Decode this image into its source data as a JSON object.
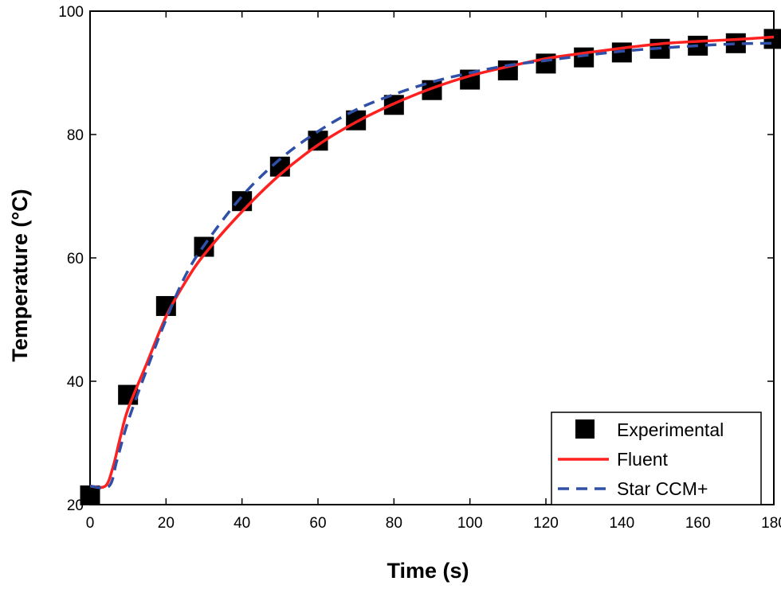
{
  "chart_data": {
    "type": "line",
    "title": "",
    "xlabel": "Time (s)",
    "ylabel": "Temperature (°C)",
    "xlim": [
      0,
      180
    ],
    "ylim": [
      20,
      100
    ],
    "x_ticks": [
      0,
      20,
      40,
      60,
      80,
      100,
      120,
      140,
      160,
      180
    ],
    "y_ticks": [
      20,
      40,
      60,
      80,
      100
    ],
    "grid": false,
    "legend_position": "bottom-right",
    "colors": {
      "experimental": "#000000",
      "fluent": "#ff2020",
      "star": "#3050a8"
    },
    "series": [
      {
        "name": "Experimental",
        "style": "square-markers",
        "x": [
          0,
          10,
          20,
          30,
          40,
          50,
          60,
          70,
          80,
          90,
          100,
          110,
          120,
          130,
          140,
          150,
          160,
          170,
          180
        ],
        "y": [
          21.5,
          37.8,
          52.2,
          61.8,
          69.2,
          74.8,
          79.0,
          82.3,
          84.8,
          87.2,
          88.9,
          90.4,
          91.5,
          92.5,
          93.3,
          93.9,
          94.4,
          94.8,
          95.5
        ]
      },
      {
        "name": "Fluent",
        "style": "solid",
        "x": [
          0,
          4,
          6,
          8,
          10,
          15,
          20,
          25,
          30,
          40,
          50,
          60,
          70,
          80,
          90,
          100,
          110,
          120,
          130,
          140,
          150,
          160,
          170,
          180
        ],
        "y": [
          23,
          23,
          26,
          31,
          35.5,
          43,
          50.5,
          56,
          60.5,
          67.5,
          73.5,
          78.3,
          82,
          85,
          87.5,
          89.5,
          91,
          92.3,
          93.2,
          94,
          94.7,
          95.1,
          95.4,
          95.8
        ]
      },
      {
        "name": "Star CCM+",
        "style": "dashed",
        "x": [
          0,
          5,
          7,
          10,
          15,
          20,
          25,
          30,
          40,
          50,
          60,
          70,
          80,
          90,
          100,
          110,
          120,
          130,
          140,
          150,
          160,
          170,
          180
        ],
        "y": [
          23,
          23,
          27,
          33.5,
          42,
          50,
          57,
          62,
          70,
          76,
          80.5,
          84,
          86.5,
          88.5,
          90,
          91.2,
          92,
          92.8,
          93.5,
          94,
          94.4,
          94.7,
          94.8
        ]
      }
    ]
  }
}
